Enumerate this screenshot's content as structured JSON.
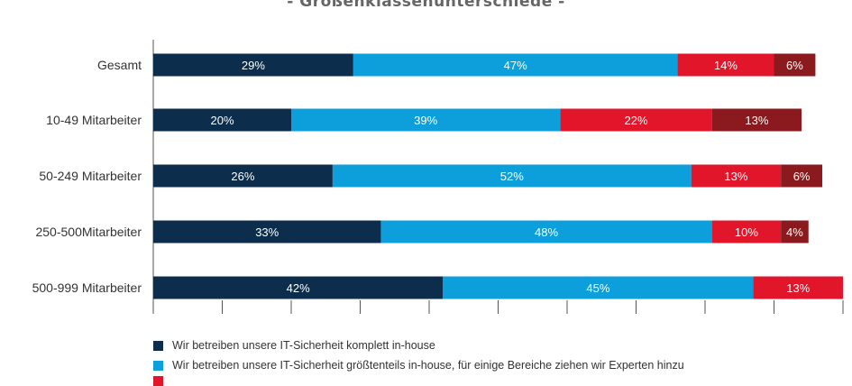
{
  "chart_data": {
    "type": "bar",
    "orientation": "horizontal",
    "stacked": true,
    "title": "- Größenklassenunterschiede -",
    "categories": [
      "Gesamt",
      "10-49 Mitarbeiter",
      "50-249 Mitarbeiter",
      "250-500Mitarbeiter",
      "500-999 Mitarbeiter"
    ],
    "xlim": [
      0,
      100
    ],
    "grid": false,
    "legend_position": "bottom",
    "series": [
      {
        "name": "Wir betreiben unsere IT-Sicherheit komplett in-house",
        "color": "#0c2d4b",
        "values": [
          29,
          20,
          26,
          33,
          42
        ]
      },
      {
        "name": "Wir betreiben unsere IT-Sicherheit größtenteils in-house, für einige Bereiche ziehen wir Experten hinzu",
        "color": "#0c9fdc",
        "values": [
          47,
          39,
          52,
          48,
          45
        ]
      },
      {
        "color": "#e2162b",
        "values": [
          14,
          22,
          13,
          10,
          13
        ]
      },
      {
        "color": "#8a1a1e",
        "values": [
          6,
          13,
          6,
          4,
          0
        ]
      }
    ]
  }
}
